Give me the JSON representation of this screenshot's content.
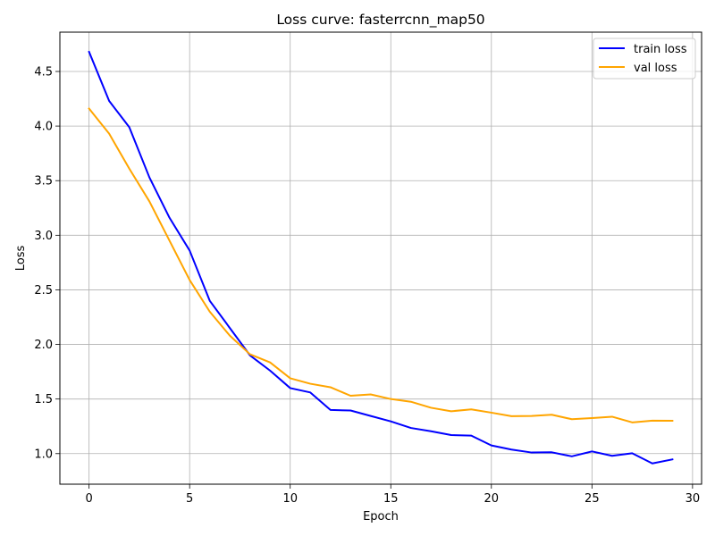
{
  "chart_data": {
    "type": "line",
    "title": "Loss curve: fasterrcnn_map50",
    "xlabel": "Epoch",
    "ylabel": "Loss",
    "xlim": [
      -1.45,
      30.45
    ],
    "ylim": [
      0.72,
      4.86
    ],
    "xticks": [
      0,
      5,
      10,
      15,
      20,
      25,
      30
    ],
    "yticks": [
      1.0,
      1.5,
      2.0,
      2.5,
      3.0,
      3.5,
      4.0,
      4.5
    ],
    "xtick_labels": [
      "0",
      "5",
      "10",
      "15",
      "20",
      "25",
      "30"
    ],
    "ytick_labels": [
      "1.0",
      "1.5",
      "2.0",
      "2.5",
      "3.0",
      "3.5",
      "4.0",
      "4.5"
    ],
    "grid": true,
    "legend_position": "top-right",
    "x": [
      0,
      1,
      2,
      3,
      4,
      5,
      6,
      7,
      8,
      9,
      10,
      11,
      12,
      13,
      14,
      15,
      16,
      17,
      18,
      19,
      20,
      21,
      22,
      23,
      24,
      25,
      26,
      27,
      28,
      29
    ],
    "series": [
      {
        "name": "train loss",
        "color": "#0000ff",
        "values": [
          4.68,
          4.23,
          3.99,
          3.53,
          3.16,
          2.86,
          2.4,
          2.15,
          1.9,
          1.76,
          1.6,
          1.56,
          1.4,
          1.395,
          1.345,
          1.295,
          1.235,
          1.205,
          1.17,
          1.165,
          1.075,
          1.037,
          1.01,
          1.012,
          0.975,
          1.02,
          0.98,
          1.003,
          0.91,
          0.947
        ]
      },
      {
        "name": "val loss",
        "color": "#ffa500",
        "values": [
          4.16,
          3.93,
          3.61,
          3.31,
          2.95,
          2.59,
          2.3,
          2.08,
          1.91,
          1.835,
          1.69,
          1.64,
          1.608,
          1.53,
          1.542,
          1.5,
          1.475,
          1.42,
          1.388,
          1.405,
          1.375,
          1.343,
          1.345,
          1.356,
          1.315,
          1.325,
          1.338,
          1.286,
          1.302,
          1.301
        ]
      }
    ]
  }
}
